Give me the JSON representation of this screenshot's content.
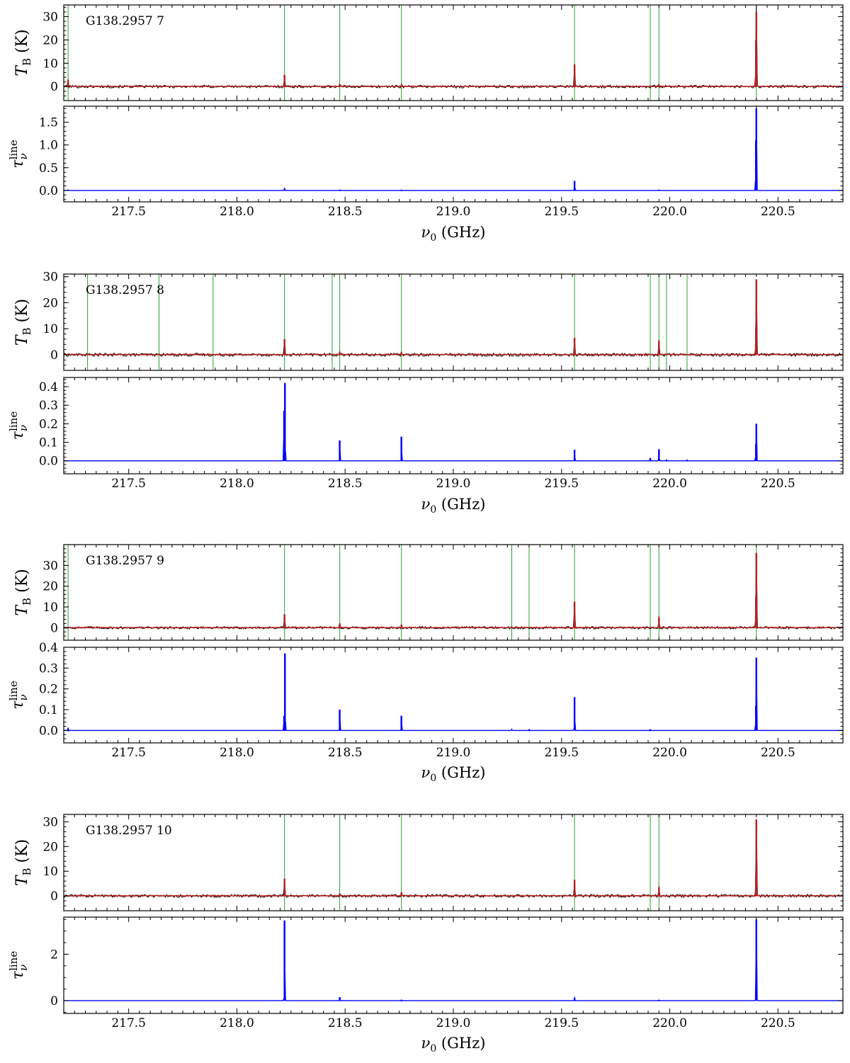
{
  "figure": {
    "xlabel": "ν0 (GHz)",
    "ylabel_top": "TB (K)",
    "ylabel_bottom": "τνline",
    "xticks": [
      217.5,
      218.0,
      218.5,
      219.0,
      219.5,
      220.0,
      220.5
    ],
    "xtick_labels": [
      "217.5",
      "218.0",
      "218.5",
      "219.0",
      "219.5",
      "220.0",
      "220.5"
    ],
    "colors": {
      "observed": "#000000",
      "model": "#b22222",
      "tau": "#0000ff",
      "marker": "#2ca02c"
    }
  },
  "chart_data": [
    {
      "type": "line",
      "source_label": "G138.2957 7",
      "xlim": [
        217.2,
        220.8
      ],
      "tb": {
        "ylim": [
          -6,
          35
        ],
        "yticks": [
          0,
          10,
          20,
          30
        ],
        "ytick_labels": [
          "0",
          "10",
          "20",
          "30"
        ],
        "series": [
          {
            "name": "observed",
            "noise": 0.5
          },
          {
            "name": "model",
            "peaks": [
              {
                "x": 217.22,
                "y": 3
              },
              {
                "x": 218.22,
                "y": 5
              },
              {
                "x": 218.475,
                "y": 1
              },
              {
                "x": 218.76,
                "y": 0.8
              },
              {
                "x": 219.56,
                "y": 9.5
              },
              {
                "x": 219.95,
                "y": 0.8
              },
              {
                "x": 220.398,
                "y": 20
              },
              {
                "x": 220.4,
                "y": 32
              }
            ]
          }
        ],
        "line_markers": [
          217.22,
          218.22,
          218.475,
          218.76,
          219.56,
          219.91,
          219.95,
          220.4
        ]
      },
      "tau": {
        "ylim": [
          -0.25,
          1.85
        ],
        "yticks": [
          0.0,
          0.5,
          1.0,
          1.5
        ],
        "ytick_labels": [
          "0.0",
          "0.5",
          "1.0",
          "1.5"
        ],
        "peaks": [
          {
            "x": 217.22,
            "y": 0.01
          },
          {
            "x": 218.22,
            "y": 0.04
          },
          {
            "x": 218.475,
            "y": 0.01
          },
          {
            "x": 218.76,
            "y": 0.01
          },
          {
            "x": 219.56,
            "y": 0.21
          },
          {
            "x": 219.95,
            "y": 0.01
          },
          {
            "x": 220.398,
            "y": 1.1
          },
          {
            "x": 220.4,
            "y": 1.8
          }
        ]
      }
    },
    {
      "type": "line",
      "source_label": "G138.2957 8",
      "xlim": [
        217.2,
        220.8
      ],
      "tb": {
        "ylim": [
          -6,
          31
        ],
        "yticks": [
          0,
          10,
          20,
          30
        ],
        "ytick_labels": [
          "0",
          "10",
          "20",
          "30"
        ],
        "series": [
          {
            "name": "observed",
            "noise": 0.5
          },
          {
            "name": "model",
            "peaks": [
              {
                "x": 218.22,
                "y": 6
              },
              {
                "x": 218.475,
                "y": 1
              },
              {
                "x": 218.76,
                "y": 1
              },
              {
                "x": 219.56,
                "y": 6.5
              },
              {
                "x": 219.95,
                "y": 5.5
              },
              {
                "x": 220.398,
                "y": 10
              },
              {
                "x": 220.4,
                "y": 29
              }
            ]
          }
        ],
        "line_markers": [
          217.31,
          217.64,
          217.89,
          218.22,
          218.44,
          218.475,
          218.76,
          219.56,
          219.91,
          219.95,
          219.985,
          220.08
        ]
      },
      "tau": {
        "ylim": [
          -0.07,
          0.45
        ],
        "yticks": [
          0.0,
          0.1,
          0.2,
          0.3,
          0.4
        ],
        "ytick_labels": [
          "0.0",
          "0.1",
          "0.2",
          "0.3",
          "0.4"
        ],
        "peaks": [
          {
            "x": 218.218,
            "y": 0.27
          },
          {
            "x": 218.222,
            "y": 0.42
          },
          {
            "x": 218.475,
            "y": 0.11
          },
          {
            "x": 218.76,
            "y": 0.13
          },
          {
            "x": 219.56,
            "y": 0.06
          },
          {
            "x": 219.91,
            "y": 0.015
          },
          {
            "x": 219.95,
            "y": 0.06
          },
          {
            "x": 219.985,
            "y": 0.005
          },
          {
            "x": 220.08,
            "y": 0.004
          },
          {
            "x": 220.398,
            "y": 0.09
          },
          {
            "x": 220.4,
            "y": 0.2
          }
        ]
      }
    },
    {
      "type": "line",
      "source_label": "G138.2957 9",
      "xlim": [
        217.2,
        220.8
      ],
      "tb": {
        "ylim": [
          -6,
          40
        ],
        "yticks": [
          0,
          10,
          20,
          30
        ],
        "ytick_labels": [
          "0",
          "10",
          "20",
          "30"
        ],
        "series": [
          {
            "name": "observed",
            "noise": 0.5
          },
          {
            "name": "model",
            "peaks": [
              {
                "x": 218.22,
                "y": 6.5
              },
              {
                "x": 218.475,
                "y": 2
              },
              {
                "x": 218.76,
                "y": 1.5
              },
              {
                "x": 219.56,
                "y": 12.5
              },
              {
                "x": 219.95,
                "y": 5
              },
              {
                "x": 220.398,
                "y": 15
              },
              {
                "x": 220.4,
                "y": 36
              }
            ]
          }
        ],
        "line_markers": [
          217.22,
          218.22,
          218.475,
          218.76,
          219.27,
          219.35,
          219.56,
          219.91,
          219.95,
          220.4
        ]
      },
      "tau": {
        "ylim": [
          -0.06,
          0.4
        ],
        "yticks": [
          0.0,
          0.1,
          0.2,
          0.3,
          0.4
        ],
        "ytick_labels": [
          "0.0",
          "0.1",
          "0.2",
          "0.3",
          "0.4"
        ],
        "peaks": [
          {
            "x": 217.22,
            "y": 0.01
          },
          {
            "x": 218.218,
            "y": 0.07
          },
          {
            "x": 218.222,
            "y": 0.37
          },
          {
            "x": 218.475,
            "y": 0.1
          },
          {
            "x": 218.76,
            "y": 0.07
          },
          {
            "x": 219.27,
            "y": 0.004
          },
          {
            "x": 219.35,
            "y": 0.004
          },
          {
            "x": 219.56,
            "y": 0.16
          },
          {
            "x": 219.91,
            "y": 0.004
          },
          {
            "x": 220.398,
            "y": 0.12
          },
          {
            "x": 220.4,
            "y": 0.35
          }
        ]
      }
    },
    {
      "type": "line",
      "source_label": "G138.2957 10",
      "xlim": [
        217.2,
        220.8
      ],
      "tb": {
        "ylim": [
          -6,
          33
        ],
        "yticks": [
          0,
          10,
          20,
          30
        ],
        "ytick_labels": [
          "0",
          "10",
          "20",
          "30"
        ],
        "series": [
          {
            "name": "observed",
            "noise": 0.5
          },
          {
            "name": "model",
            "peaks": [
              {
                "x": 218.22,
                "y": 7
              },
              {
                "x": 218.475,
                "y": 1
              },
              {
                "x": 218.76,
                "y": 1.5
              },
              {
                "x": 219.56,
                "y": 6.5
              },
              {
                "x": 219.95,
                "y": 3.5
              },
              {
                "x": 220.398,
                "y": 8
              },
              {
                "x": 220.4,
                "y": 31
              }
            ]
          }
        ],
        "line_markers": [
          218.22,
          218.475,
          218.76,
          219.56,
          219.91,
          219.95
        ]
      },
      "tau": {
        "ylim": [
          -0.55,
          3.6
        ],
        "yticks": [
          0,
          2
        ],
        "ytick_labels": [
          "0",
          "2"
        ],
        "peaks": [
          {
            "x": 218.22,
            "y": 3.45
          },
          {
            "x": 218.475,
            "y": 0.15
          },
          {
            "x": 218.76,
            "y": 0.03
          },
          {
            "x": 219.56,
            "y": 0.12
          },
          {
            "x": 219.95,
            "y": 0.03
          },
          {
            "x": 220.4,
            "y": 3.5
          }
        ]
      }
    }
  ]
}
